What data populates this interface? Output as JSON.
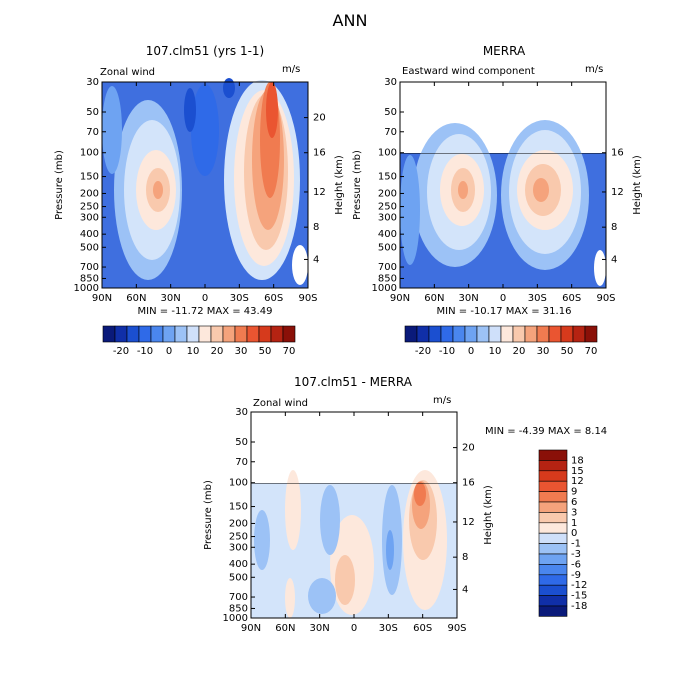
{
  "page_title": "ANN",
  "colors": {
    "neg": [
      "#0a1a7a",
      "#102fa8",
      "#1b4fd0",
      "#2f6ae8",
      "#4a86ee",
      "#6ea3f2",
      "#9cc2f6",
      "#cfe0fa"
    ],
    "pos": [
      "#fde8dc",
      "#f9c9ad",
      "#f5a37c",
      "#f07b50",
      "#ea5531",
      "#d63a1c",
      "#b52312",
      "#8a1008"
    ],
    "mid": "#ffffff",
    "fill_panel_top": "#3f6fdf",
    "fill_panel_diff": "#d3e4fa"
  },
  "chart_data": [
    {
      "type": "heatmap",
      "title": "107.clm51 (yrs 1-1)",
      "variable": "Zonal wind",
      "units": "m/s",
      "ylabel": "Pressure (mb)",
      "y2label": "Height (km)",
      "x_ticks": [
        "90N",
        "60N",
        "30N",
        "0",
        "30S",
        "60S",
        "90S"
      ],
      "y_ticks": [
        "30",
        "50",
        "70",
        "100",
        "150",
        "200",
        "250",
        "300",
        "400",
        "500",
        "700",
        "850",
        "1000"
      ],
      "y2_ticks": [
        "20",
        "16",
        "12",
        "8",
        "4"
      ],
      "min_max": "MIN = -11.72   MAX = 43.49",
      "colorbar_labels": [
        "-20",
        "-10",
        "0",
        "10",
        "20",
        "30",
        "50",
        "70"
      ],
      "data_top_pressure": 30,
      "features": [
        {
          "kind": "jet",
          "lat": -35,
          "p": 200,
          "value": 43.49
        },
        {
          "kind": "jet",
          "lat": 35,
          "p": 200,
          "value": 22
        },
        {
          "kind": "min",
          "lat": 0,
          "p": 850,
          "value": -11.72
        }
      ]
    },
    {
      "type": "heatmap",
      "title": "MERRA",
      "variable": "Eastward wind component",
      "units": "m/s",
      "ylabel": "Pressure (mb)",
      "y2label": "Height (km)",
      "x_ticks": [
        "90N",
        "60N",
        "30N",
        "0",
        "30S",
        "60S",
        "90S"
      ],
      "y_ticks": [
        "30",
        "50",
        "70",
        "100",
        "150",
        "200",
        "250",
        "300",
        "400",
        "500",
        "700",
        "850",
        "1000"
      ],
      "y2_ticks": [
        "16",
        "12",
        "8",
        "4"
      ],
      "min_max": "MIN = -10.17   MAX = 31.16",
      "colorbar_labels": [
        "-20",
        "-10",
        "0",
        "10",
        "20",
        "30",
        "50",
        "70"
      ],
      "data_top_pressure": 100,
      "features": [
        {
          "kind": "jet",
          "lat": -35,
          "p": 200,
          "value": 31.16
        },
        {
          "kind": "jet",
          "lat": 35,
          "p": 200,
          "value": 22
        },
        {
          "kind": "min",
          "lat": 0,
          "p": 850,
          "value": -10.17
        }
      ]
    },
    {
      "type": "heatmap",
      "title": "107.clm51 - MERRA",
      "variable": "Zonal wind",
      "units": "m/s",
      "ylabel": "Pressure (mb)",
      "y2label": "Height (km)",
      "x_ticks": [
        "90N",
        "60N",
        "30N",
        "0",
        "30S",
        "60S",
        "90S"
      ],
      "y_ticks": [
        "30",
        "50",
        "70",
        "100",
        "150",
        "200",
        "250",
        "300",
        "400",
        "500",
        "700",
        "850",
        "1000"
      ],
      "y2_ticks": [
        "20",
        "16",
        "12",
        "8",
        "4"
      ],
      "min_max": "MIN =  -4.39   MAX =   8.14",
      "colorbar_labels": [
        "18",
        "15",
        "12",
        "9",
        "6",
        "3",
        "1",
        "0",
        "-1",
        "-3",
        "-6",
        "-9",
        "-12",
        "-15",
        "-18"
      ],
      "data_top_pressure": 100,
      "features": [
        {
          "kind": "max",
          "lat": -60,
          "p": 150,
          "value": 8.14
        },
        {
          "kind": "min",
          "lat": -20,
          "p": 300,
          "value": -4.39
        }
      ]
    }
  ]
}
